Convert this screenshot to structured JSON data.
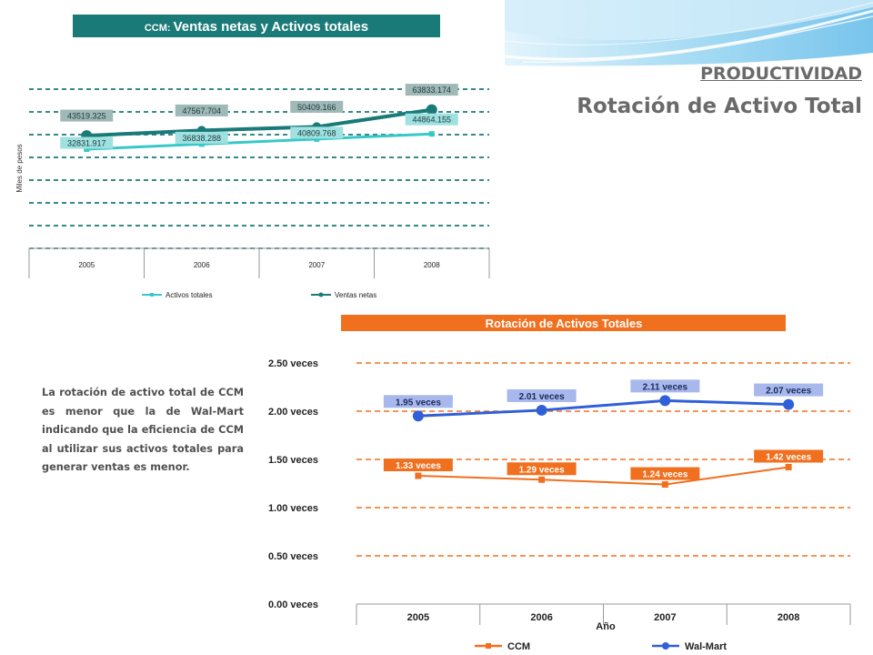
{
  "heading": {
    "section": "PRODUCTIVIDAD",
    "title": "Rotación de Activo Total"
  },
  "description": "La rotación de activo total de CCM es menor que la de Wal-Mart indicando que la eficiencia de CCM al utilizar sus activos totales para generar ventas es menor.",
  "colors": {
    "teal_dark": "#1a7a78",
    "teal_light": "#38c8c8",
    "orange": "#f07020",
    "blue": "#3060d8",
    "label_blue": "#a8b8ec",
    "heading_gray": "#6a6a6a"
  },
  "chart_data": [
    {
      "type": "line",
      "title_prefix": "CCM:",
      "title_main": "Ventas netas y Activos totales",
      "ylabel": "Miles de pesos",
      "xlabel": "",
      "categories": [
        "2005",
        "2006",
        "2007",
        "2008"
      ],
      "ylim": [
        -45000,
        80000
      ],
      "grid": true,
      "legend_position": "bottom",
      "series": [
        {
          "name": "Activos totales",
          "values": [
            32831.917,
            36838.288,
            40809.768,
            44864.155
          ],
          "labels": [
            "32831.917",
            "36838.288",
            "40809.768",
            "44864.155"
          ],
          "color": "#38c8c8",
          "marker": "square"
        },
        {
          "name": "Ventas netas",
          "values": [
            43519.325,
            47567.704,
            50409.166,
            63833.174
          ],
          "labels": [
            "43519.325",
            "47567.704",
            "50409.166",
            "63833.174"
          ],
          "color": "#1a7a78",
          "marker": "circle"
        }
      ]
    },
    {
      "type": "line",
      "title": "Rotación de Activos Totales",
      "xlabel": "Año",
      "ylabel": "",
      "categories": [
        "2005",
        "2006",
        "2007",
        "2008"
      ],
      "ylim": [
        0,
        2.5
      ],
      "yticks": [
        "0.00 veces",
        "0.50 veces",
        "1.00 veces",
        "1.50 veces",
        "2.00 veces",
        "2.50 veces"
      ],
      "grid": true,
      "legend_position": "bottom",
      "series": [
        {
          "name": "CCM",
          "values": [
            1.33,
            1.29,
            1.24,
            1.42
          ],
          "labels": [
            "1.33 veces",
            "1.29 veces",
            "1.24 veces",
            "1.42 veces"
          ],
          "color": "#f07020",
          "marker": "square"
        },
        {
          "name": "Wal-Mart",
          "values": [
            1.95,
            2.01,
            2.11,
            2.07
          ],
          "labels": [
            "1.95 veces",
            "2.01 veces",
            "2.11 veces",
            "2.07 veces"
          ],
          "color": "#3060d8",
          "marker": "circle"
        }
      ]
    }
  ]
}
